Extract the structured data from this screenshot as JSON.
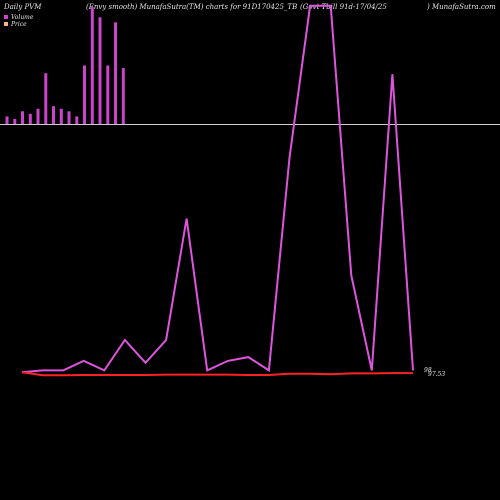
{
  "header": {
    "left": "Daily PVM",
    "mid1": "(Envy smooth) MunafaSutra(TM) charts for 91D170425_TB",
    "mid2": "(Govt Tbill 91d-17/04/25",
    "right": ") MunafaSutra.com"
  },
  "legend": [
    {
      "label": "Volume",
      "color": "#cc44cc"
    },
    {
      "label": "Price",
      "color": "#ffb27f"
    }
  ],
  "colors": {
    "volume": "#cc44cc",
    "line": "#dd55dd",
    "price": "#ff2222",
    "baseline": "#cccccc"
  },
  "chart_data": {
    "type": "bar",
    "volume_bars": [
      1.5,
      1,
      2.5,
      2,
      3,
      10,
      3.5,
      3,
      2.5,
      1.5,
      11.5,
      23,
      21,
      11.5,
      20,
      11
    ],
    "volume_range": [
      0,
      24
    ],
    "envelope_line": [
      0.5,
      1.0,
      1.0,
      3.5,
      1.0,
      9.0,
      3.0,
      9.0,
      41.0,
      1.0,
      3.5,
      4.5,
      1.0,
      57.0,
      97.0,
      97.0,
      26.0,
      1.0,
      79.0,
      1.0
    ],
    "price_line": [
      0.5,
      -0.3,
      -0.3,
      -0.2,
      -0.2,
      -0.2,
      -0.2,
      -0.1,
      -0.1,
      -0.1,
      -0.1,
      -0.2,
      -0.2,
      0.1,
      0.1,
      0.0,
      0.2,
      0.2,
      0.3,
      0.3
    ],
    "value_range": [
      -1,
      98
    ],
    "end_labels": [
      "98",
      "97.53"
    ]
  }
}
